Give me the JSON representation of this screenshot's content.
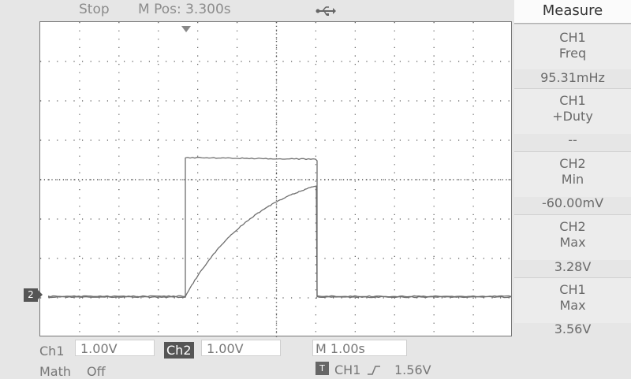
{
  "status": {
    "run_state": "Stop",
    "position": "M Pos: 3.300s",
    "usb_icon": "usb-icon"
  },
  "measure_panel": {
    "title": "Measure",
    "items": [
      {
        "channel": "CH1",
        "type": "Freq",
        "value": "95.31mHz"
      },
      {
        "channel": "CH1",
        "type": "+Duty",
        "value": "--"
      },
      {
        "channel": "CH2",
        "type": "Min",
        "value": "-60.00mV"
      },
      {
        "channel": "CH2",
        "type": "Max",
        "value": "3.28V"
      },
      {
        "channel": "CH1",
        "type": "Max",
        "value": "3.56V"
      }
    ]
  },
  "bottom": {
    "ch1_label": "Ch1",
    "ch1_scale": "1.00V",
    "ch2_label": "Ch2",
    "ch2_scale": "1.00V",
    "timebase": "M 1.00s",
    "math_label": "Math",
    "math_state": "Off",
    "trigger_icon": "T",
    "trigger_source": "CH1",
    "trigger_level": "1.56V"
  },
  "channel_marker": "2",
  "colors": {
    "trace": "#6e6e6e",
    "grid": "#555555",
    "background": "#e6e6e6",
    "screen": "#ffffff"
  }
}
